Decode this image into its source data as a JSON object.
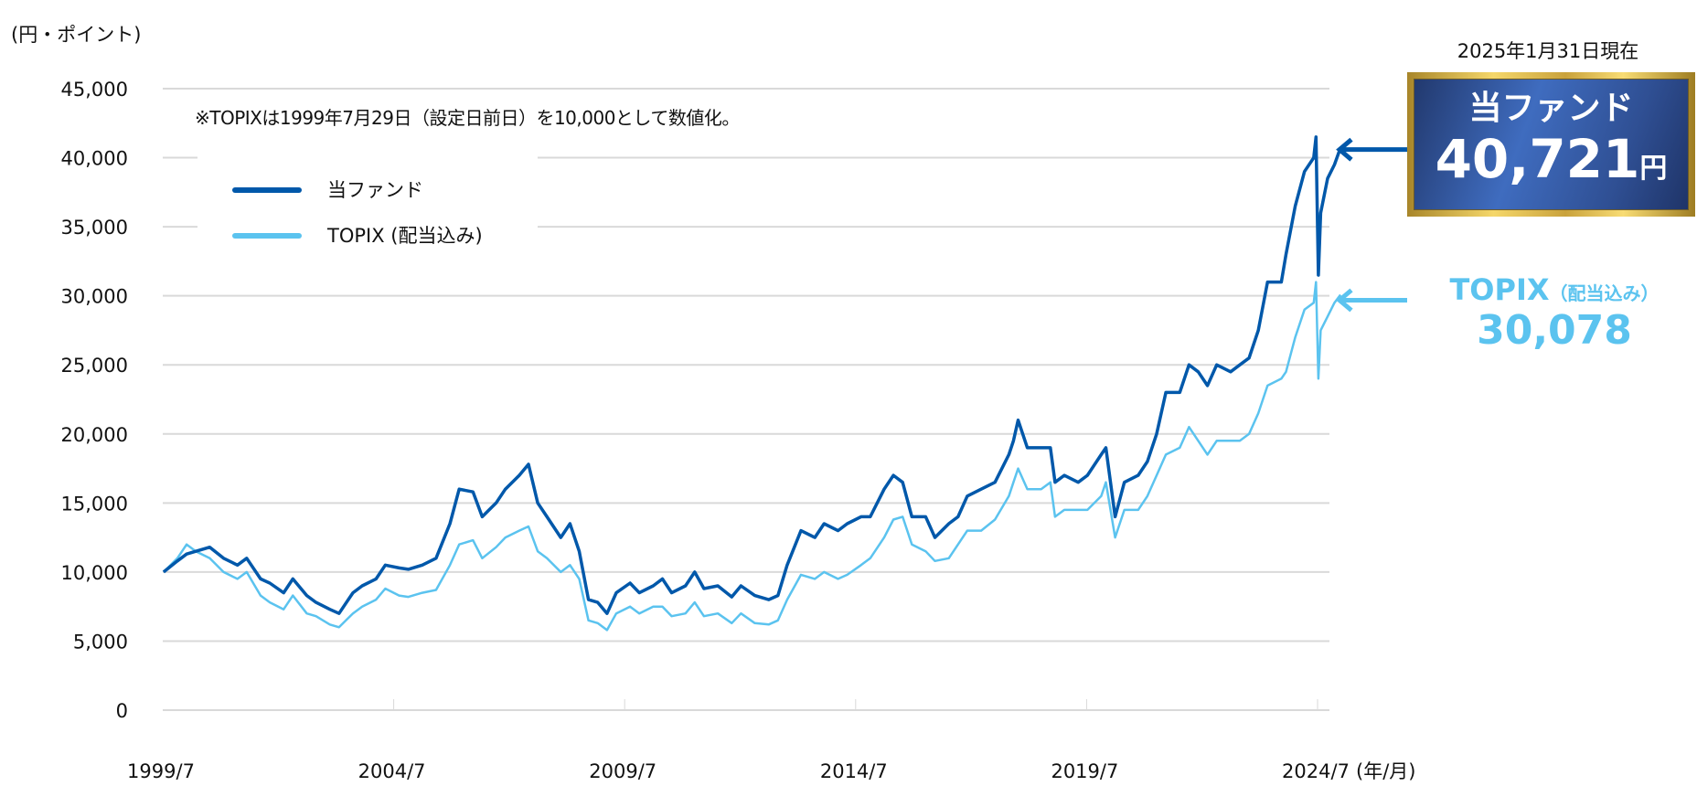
{
  "chart_data": {
    "type": "line",
    "ylabel": "(円・ポイント)",
    "xlabel_unit": "(年/月)",
    "note": "※TOPIXは1999年7月29日（設定日前日）を10,000として数値化。",
    "ylim": [
      0,
      45000
    ],
    "yticks": [
      0,
      5000,
      10000,
      15000,
      20000,
      25000,
      30000,
      35000,
      40000,
      45000
    ],
    "ytick_labels": [
      "0",
      "5,000",
      "10,000",
      "15,000",
      "20,000",
      "25,000",
      "30,000",
      "35,000",
      "40,000",
      "45,000"
    ],
    "xlim": [
      1999.583,
      2025.08
    ],
    "xticks": [
      1999.583,
      2004.583,
      2009.583,
      2014.583,
      2019.583,
      2024.583
    ],
    "xtick_labels": [
      "1999/7",
      "2004/7",
      "2009/7",
      "2014/7",
      "2019/7",
      "2024/7"
    ],
    "grid": true,
    "legend_position": "top-left",
    "x": [
      1999.6,
      1999.9,
      2000.1,
      2000.3,
      2000.6,
      2000.9,
      2001.2,
      2001.4,
      2001.7,
      2001.9,
      2002.2,
      2002.4,
      2002.7,
      2002.9,
      2003.2,
      2003.4,
      2003.7,
      2003.9,
      2004.2,
      2004.4,
      2004.7,
      2004.9,
      2005.2,
      2005.5,
      2005.8,
      2006.0,
      2006.3,
      2006.5,
      2006.8,
      2007.0,
      2007.3,
      2007.5,
      2007.7,
      2007.9,
      2008.2,
      2008.4,
      2008.6,
      2008.8,
      2009.0,
      2009.2,
      2009.4,
      2009.7,
      2009.9,
      2010.2,
      2010.4,
      2010.6,
      2010.9,
      2011.1,
      2011.3,
      2011.6,
      2011.9,
      2012.1,
      2012.4,
      2012.7,
      2012.9,
      2013.1,
      2013.4,
      2013.7,
      2013.9,
      2014.2,
      2014.4,
      2014.7,
      2014.9,
      2015.2,
      2015.4,
      2015.6,
      2015.8,
      2016.1,
      2016.3,
      2016.6,
      2016.8,
      2017.0,
      2017.3,
      2017.6,
      2017.9,
      2018.0,
      2018.1,
      2018.3,
      2018.6,
      2018.8,
      2018.9,
      2019.1,
      2019.4,
      2019.6,
      2019.9,
      2020.0,
      2020.2,
      2020.4,
      2020.7,
      2020.9,
      2021.1,
      2021.3,
      2021.6,
      2021.8,
      2022.0,
      2022.2,
      2022.4,
      2022.7,
      2022.9,
      2023.1,
      2023.3,
      2023.5,
      2023.8,
      2023.9,
      2024.1,
      2024.3,
      2024.5,
      2024.55,
      2024.6,
      2024.65,
      2024.8,
      2024.95,
      2025.08
    ],
    "series": [
      {
        "name": "当ファンド",
        "color": "#0058aa",
        "values": [
          10000,
          10800,
          11300,
          11500,
          11800,
          11000,
          10500,
          11000,
          9500,
          9200,
          8500,
          9500,
          8300,
          7800,
          7300,
          7000,
          8500,
          9000,
          9500,
          10500,
          10300,
          10200,
          10500,
          11000,
          13500,
          16000,
          15800,
          14000,
          15000,
          16000,
          17000,
          17800,
          15000,
          14000,
          12500,
          13500,
          11500,
          8000,
          7800,
          7000,
          8500,
          9200,
          8500,
          9000,
          9500,
          8500,
          9000,
          10000,
          8800,
          9000,
          8200,
          9000,
          8300,
          8000,
          8300,
          10500,
          13000,
          12500,
          13500,
          13000,
          13500,
          14000,
          14000,
          16000,
          17000,
          16500,
          14000,
          14000,
          12500,
          13500,
          14000,
          15500,
          16000,
          16500,
          18500,
          19500,
          21000,
          19000,
          19000,
          19000,
          16500,
          17000,
          16500,
          17000,
          18500,
          19000,
          14000,
          16500,
          17000,
          18000,
          20000,
          23000,
          23000,
          25000,
          24500,
          23500,
          25000,
          24500,
          25000,
          25500,
          27500,
          31000,
          31000,
          33000,
          36500,
          39000,
          40000,
          41500,
          31500,
          36000,
          38500,
          39500,
          40721
        ]
      },
      {
        "name": "TOPIX(配当込み)",
        "color": "#5bc3ef",
        "values": [
          10000,
          11000,
          12000,
          11500,
          11000,
          10000,
          9500,
          10000,
          8300,
          7800,
          7300,
          8300,
          7000,
          6800,
          6200,
          6000,
          7000,
          7500,
          8000,
          8800,
          8300,
          8200,
          8500,
          8700,
          10500,
          12000,
          12300,
          11000,
          11800,
          12500,
          13000,
          13300,
          11500,
          11000,
          10000,
          10500,
          9500,
          6500,
          6300,
          5800,
          7000,
          7500,
          7000,
          7500,
          7500,
          6800,
          7000,
          7800,
          6800,
          7000,
          6300,
          7000,
          6300,
          6200,
          6500,
          8000,
          9800,
          9500,
          10000,
          9500,
          9800,
          10500,
          11000,
          12500,
          13800,
          14000,
          12000,
          11500,
          10800,
          11000,
          12000,
          13000,
          13000,
          13800,
          15500,
          16500,
          17500,
          16000,
          16000,
          16500,
          14000,
          14500,
          14500,
          14500,
          15500,
          16500,
          12500,
          14500,
          14500,
          15500,
          17000,
          18500,
          19000,
          20500,
          19500,
          18500,
          19500,
          19500,
          19500,
          20000,
          21500,
          23500,
          24000,
          24500,
          27000,
          29000,
          29500,
          31000,
          24000,
          27500,
          28500,
          29500,
          30078
        ]
      }
    ]
  },
  "legend": {
    "fund": "当ファンド",
    "topix": "TOPIX (配当込み)"
  },
  "callout": {
    "as_of": "2025年1月31日現在",
    "fund_title": "当ファンド",
    "fund_value": "40,721",
    "fund_unit": "円",
    "topix_title": "TOPIX",
    "topix_sub": "（配当込み）",
    "topix_value": "30,078"
  }
}
